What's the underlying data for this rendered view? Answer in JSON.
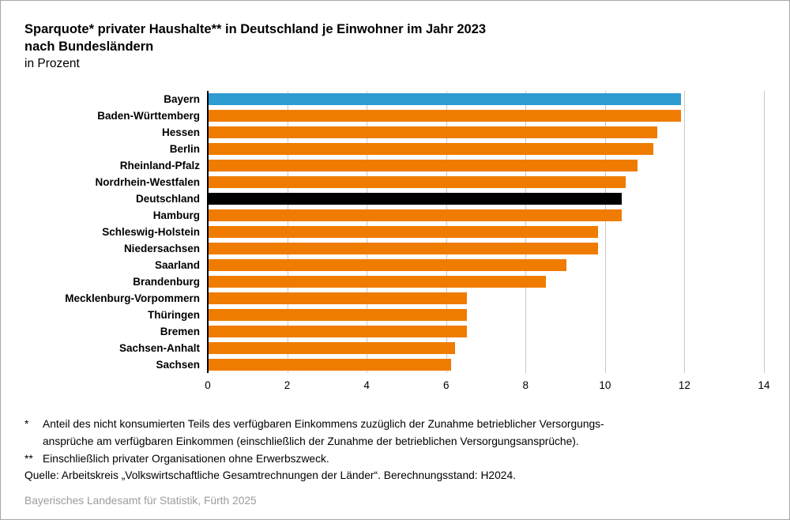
{
  "title": {
    "line1": "Sparquote* privater Haushalte** in Deutschland je Einwohner im Jahr 2023",
    "line2": "nach Bundesländern",
    "line3": "in Prozent"
  },
  "chart_data": {
    "type": "bar",
    "orientation": "horizontal",
    "xlabel": "",
    "ylabel": "",
    "unit": "Prozent",
    "xlim": [
      0,
      14
    ],
    "x_ticks": [
      0,
      2,
      4,
      6,
      8,
      10,
      12,
      14
    ],
    "grid": true,
    "legend": "none",
    "bars": [
      {
        "label": "Bayern",
        "value": 11.9,
        "color": "#2e9bd1"
      },
      {
        "label": "Baden-Württemberg",
        "value": 11.9,
        "color": "#ef7c00"
      },
      {
        "label": "Hessen",
        "value": 11.3,
        "color": "#ef7c00"
      },
      {
        "label": "Berlin",
        "value": 11.2,
        "color": "#ef7c00"
      },
      {
        "label": "Rheinland-Pfalz",
        "value": 10.8,
        "color": "#ef7c00"
      },
      {
        "label": "Nordrhein-Westfalen",
        "value": 10.5,
        "color": "#ef7c00"
      },
      {
        "label": "Deutschland",
        "value": 10.4,
        "color": "#000000"
      },
      {
        "label": "Hamburg",
        "value": 10.4,
        "color": "#ef7c00"
      },
      {
        "label": "Schleswig-Holstein",
        "value": 9.8,
        "color": "#ef7c00"
      },
      {
        "label": "Niedersachsen",
        "value": 9.8,
        "color": "#ef7c00"
      },
      {
        "label": "Saarland",
        "value": 9.0,
        "color": "#ef7c00"
      },
      {
        "label": "Brandenburg",
        "value": 8.5,
        "color": "#ef7c00"
      },
      {
        "label": "Mecklenburg-Vorpommern",
        "value": 6.5,
        "color": "#ef7c00"
      },
      {
        "label": "Thüringen",
        "value": 6.5,
        "color": "#ef7c00"
      },
      {
        "label": "Bremen",
        "value": 6.5,
        "color": "#ef7c00"
      },
      {
        "label": "Sachsen-Anhalt",
        "value": 6.2,
        "color": "#ef7c00"
      },
      {
        "label": "Sachsen",
        "value": 6.1,
        "color": "#ef7c00"
      }
    ]
  },
  "footnotes": [
    {
      "marker": "*",
      "text": "Anteil des nicht konsumierten Teils des verfügbaren Einkommens zuzüglich der Zunahme betrieblicher Versorgungs-\nansprüche am verfügbaren Einkommen (einschließlich der Zunahme der betrieblichen Versorgungsansprüche)."
    },
    {
      "marker": "**",
      "text": "Einschließlich privater Organisationen ohne Erwerbszweck."
    }
  ],
  "source": "Quelle: Arbeitskreis „Volkswirtschaftliche Gesamtrechnungen der Länder“. Berechnungsstand: H2024.",
  "footer": "Bayerisches Landesamt für Statistik, Fürth 2025",
  "colors": {
    "highlight_blue": "#2e9bd1",
    "bar_orange": "#ef7c00",
    "germany_black": "#000000",
    "gridline": "#c9c9c9",
    "frame_border": "#a6a6a6",
    "footer_gray": "#9c9c9c"
  }
}
